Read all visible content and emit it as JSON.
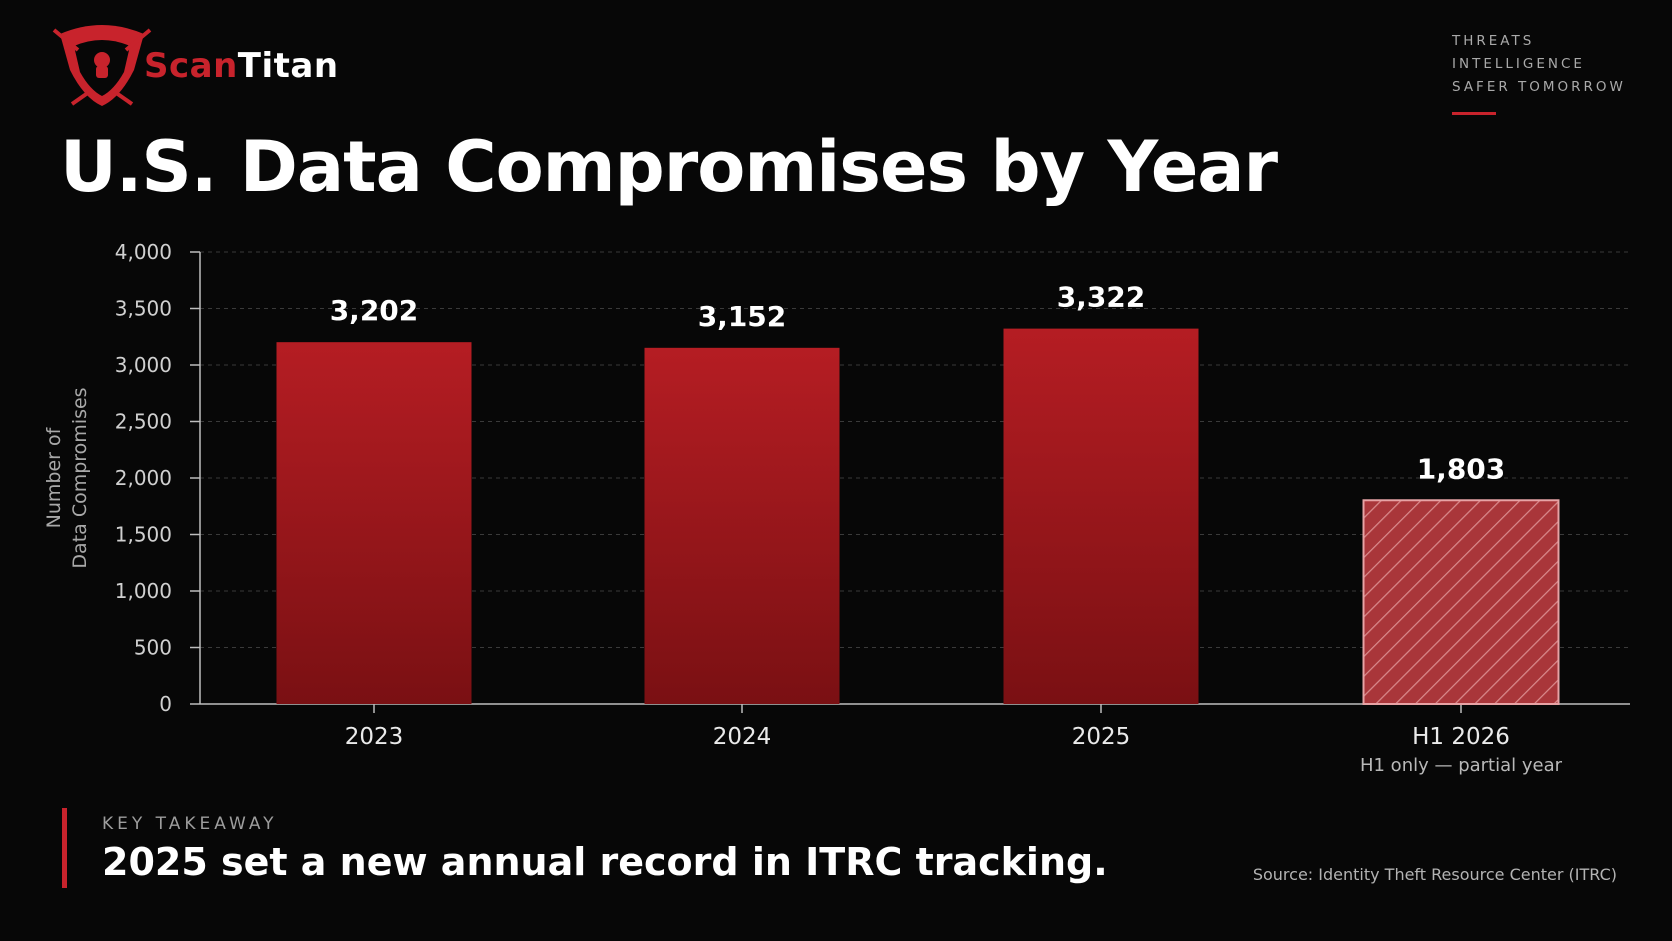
{
  "brand": {
    "name_part1": "Scan",
    "name_part2": "Titan",
    "tagline": [
      "THREATS",
      "INTELLIGENCE",
      "SAFER TOMORROW"
    ],
    "accent_color": "#c8232c"
  },
  "title": "U.S. Data Compromises by Year",
  "chart_data": {
    "type": "bar",
    "categories": [
      "2023",
      "2024",
      "2025",
      "H1 2026"
    ],
    "category_sublabels": [
      "",
      "",
      "",
      "H1 only — partial year"
    ],
    "values": [
      3202,
      3152,
      3322,
      1803
    ],
    "value_labels": [
      "3,202",
      "3,152",
      "3,322",
      "1,803"
    ],
    "partial": [
      false,
      false,
      false,
      true
    ],
    "ylabel": [
      "Number of",
      "Data Compromises"
    ],
    "ylim": [
      0,
      4000
    ],
    "yticks": [
      0,
      500,
      1000,
      1500,
      2000,
      2500,
      3000,
      3500,
      4000
    ],
    "ytick_labels": [
      "0",
      "500",
      "1,000",
      "1,500",
      "2,000",
      "2,500",
      "3,000",
      "3,500",
      "4,000"
    ],
    "grid": true,
    "colors": {
      "bar": "#b01c22",
      "bar_dark": "#7a1013",
      "partial": "#c8484c"
    }
  },
  "takeaway": {
    "kicker": "KEY TAKEAWAY",
    "text": "2025 set a new annual record in ITRC tracking."
  },
  "source": "Source: Identity Theft Resource Center (ITRC)"
}
